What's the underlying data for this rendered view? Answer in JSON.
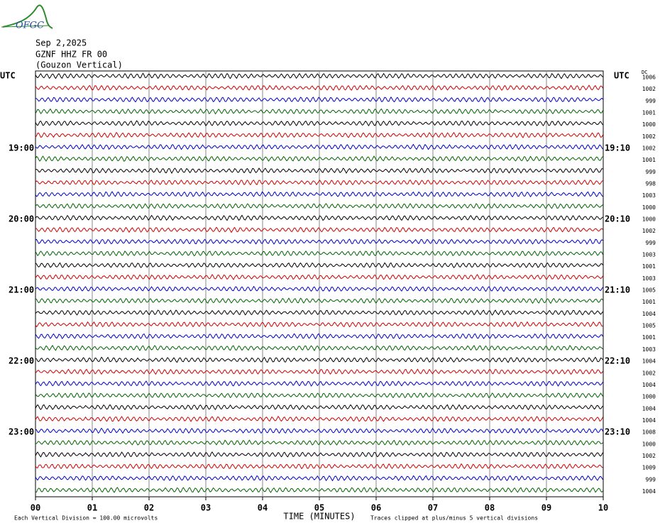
{
  "header": {
    "logo": "OFGC",
    "date": "Sep 2,2025",
    "station": "GZNF HHZ FR 00",
    "location": "(Gouzon Vertical)"
  },
  "dc_label": "DC",
  "trace_colors": [
    "#000000",
    "#d00000",
    "#0000c8",
    "#006400"
  ],
  "rows": [
    {
      "left": "UTC",
      "right": "UTC",
      "dc": "1006"
    },
    {
      "dc": "1002"
    },
    {
      "dc": "999"
    },
    {
      "dc": "1001"
    },
    {
      "dc": "1000"
    },
    {
      "dc": "1002"
    },
    {
      "left": "19:00",
      "right": "19:10",
      "dc": "1002"
    },
    {
      "dc": "1001"
    },
    {
      "dc": "999"
    },
    {
      "dc": "998"
    },
    {
      "dc": "1003"
    },
    {
      "dc": "1000"
    },
    {
      "left": "20:00",
      "right": "20:10",
      "dc": "1000"
    },
    {
      "dc": "1002"
    },
    {
      "dc": "999"
    },
    {
      "dc": "1003"
    },
    {
      "dc": "1001"
    },
    {
      "dc": "1003"
    },
    {
      "left": "21:00",
      "right": "21:10",
      "dc": "1005"
    },
    {
      "dc": "1001"
    },
    {
      "dc": "1004"
    },
    {
      "dc": "1005"
    },
    {
      "dc": "1001"
    },
    {
      "dc": "1003"
    },
    {
      "left": "22:00",
      "right": "22:10",
      "dc": "1004"
    },
    {
      "dc": "1002"
    },
    {
      "dc": "1004"
    },
    {
      "dc": "1000"
    },
    {
      "dc": "1004"
    },
    {
      "dc": "1004"
    },
    {
      "left": "23:00",
      "right": "23:10",
      "dc": "1008"
    },
    {
      "dc": "1000"
    },
    {
      "dc": "1002"
    },
    {
      "dc": "1009"
    },
    {
      "dc": "999"
    },
    {
      "dc": "1004"
    }
  ],
  "x_ticks": [
    "00",
    "01",
    "02",
    "03",
    "04",
    "05",
    "06",
    "07",
    "08",
    "09",
    "10"
  ],
  "x_axis_label": "TIME (MINUTES)",
  "footer": {
    "scale_note": "Each Vertical Division =  100.00 microvolts",
    "clip_note": "Traces clipped at plus/minus 5 vertical divisions"
  }
}
